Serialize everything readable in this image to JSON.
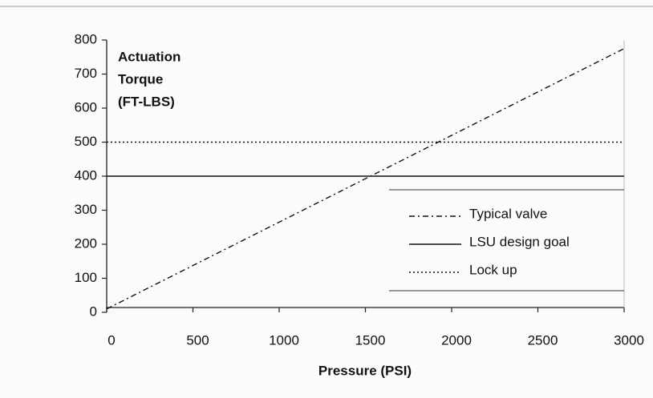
{
  "chart_data": {
    "type": "line",
    "ylabel": [
      "Actuation",
      "Torque",
      "(FT-LBS)"
    ],
    "xlabel": "Pressure (PSI)",
    "x": [
      0,
      3000
    ],
    "series": [
      {
        "name": "Typical valve",
        "color": "#111111",
        "dash": "dashdot",
        "values": [
          10,
          775
        ]
      },
      {
        "name": "LSU design goal",
        "color": "#111111",
        "dash": "solid",
        "values": [
          400,
          400
        ]
      },
      {
        "name": "Lock up",
        "color": "#111111",
        "dash": "dotted",
        "values": [
          500,
          500
        ]
      }
    ],
    "xlim": [
      0,
      3000
    ],
    "xticks": [
      0,
      500,
      1000,
      1500,
      2000,
      2500,
      3000
    ],
    "ylim": [
      0,
      800
    ],
    "yticks": [
      0,
      100,
      200,
      300,
      400,
      500,
      600,
      700,
      800
    ],
    "legend": "lower right"
  }
}
